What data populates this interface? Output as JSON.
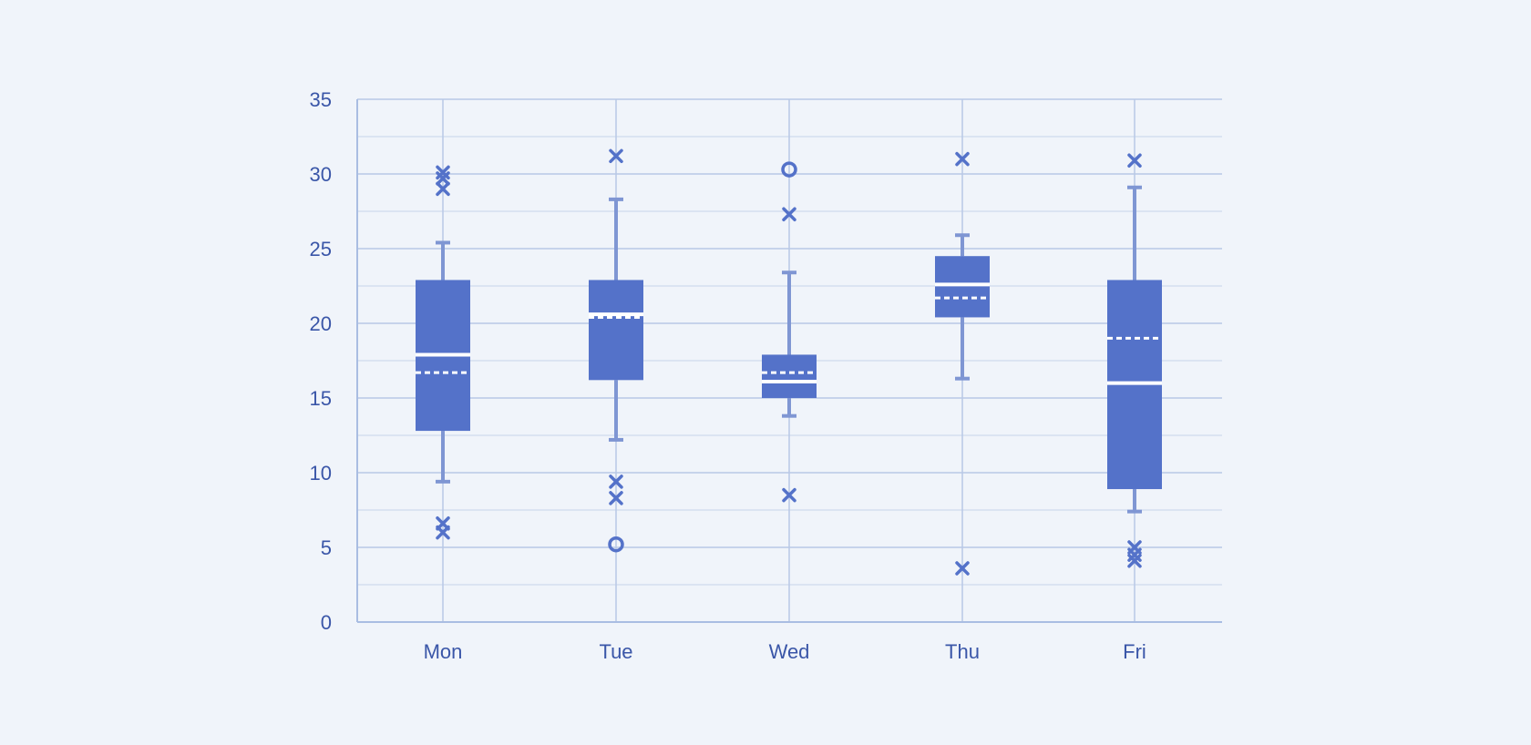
{
  "chart_data": {
    "type": "box",
    "title": "",
    "xlabel": "",
    "ylabel": "",
    "ylim": [
      0,
      35
    ],
    "yticks": [
      0,
      5,
      10,
      15,
      20,
      25,
      30,
      35
    ],
    "minor_grid_step": 2.5,
    "grid": true,
    "colors": {
      "box": "#5472c9",
      "whisker": "#7f96d3",
      "outlier": "#5472c9",
      "grid": "#b8c8e6",
      "axis": "#a9bde2",
      "text": "#3a56a8",
      "background": "#f0f4fa"
    },
    "categories": [
      "Mon",
      "Tue",
      "Wed",
      "Thu",
      "Fri"
    ],
    "boxes": [
      {
        "category": "Mon",
        "whisker_low": 9.4,
        "q1": 12.8,
        "median": 17.9,
        "mean": 16.7,
        "q3": 22.9,
        "whisker_high": 25.4,
        "outliers": [
          {
            "value": 30.1,
            "marker": "x"
          },
          {
            "value": 29.7,
            "marker": "x"
          },
          {
            "value": 29.0,
            "marker": "x"
          },
          {
            "value": 6.6,
            "marker": "x"
          },
          {
            "value": 6.0,
            "marker": "x"
          }
        ]
      },
      {
        "category": "Tue",
        "whisker_low": 12.2,
        "q1": 16.2,
        "median": 20.6,
        "mean": 20.4,
        "q3": 22.9,
        "whisker_high": 28.3,
        "outliers": [
          {
            "value": 31.2,
            "marker": "x"
          },
          {
            "value": 9.4,
            "marker": "x"
          },
          {
            "value": 8.3,
            "marker": "x"
          },
          {
            "value": 5.2,
            "marker": "o"
          }
        ]
      },
      {
        "category": "Wed",
        "whisker_low": 13.8,
        "q1": 15.0,
        "median": 16.1,
        "mean": 16.7,
        "q3": 17.9,
        "whisker_high": 23.4,
        "outliers": [
          {
            "value": 30.3,
            "marker": "o"
          },
          {
            "value": 27.3,
            "marker": "x"
          },
          {
            "value": 8.5,
            "marker": "x"
          }
        ]
      },
      {
        "category": "Thu",
        "whisker_low": 16.3,
        "q1": 20.4,
        "median": 22.6,
        "mean": 21.7,
        "q3": 24.5,
        "whisker_high": 25.9,
        "outliers": [
          {
            "value": 31.0,
            "marker": "x"
          },
          {
            "value": 3.6,
            "marker": "x"
          }
        ]
      },
      {
        "category": "Fri",
        "whisker_low": 7.4,
        "q1": 8.9,
        "median": 16.0,
        "mean": 19.0,
        "q3": 22.9,
        "whisker_high": 29.1,
        "outliers": [
          {
            "value": 30.9,
            "marker": "x"
          },
          {
            "value": 5.0,
            "marker": "x"
          },
          {
            "value": 4.5,
            "marker": "x"
          },
          {
            "value": 4.1,
            "marker": "x"
          }
        ]
      }
    ]
  }
}
